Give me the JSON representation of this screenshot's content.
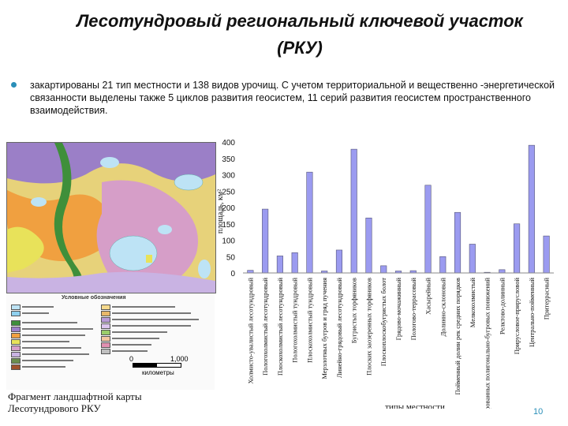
{
  "slide": {
    "title_line1": "Лесотундровый региональный ключевой участок",
    "title_line2": "(РКУ)",
    "bullet": "закартированы 21 тип местности и 138 видов урочищ. С учетом территориальной и вещественно -энергетической связанности выделены также 5 циклов развития геосистем, 11 серий развития геосистем пространственного взаимодействия.",
    "map_caption_line1": "Фрагмент ландшафтной карты",
    "map_caption_line2": "Лесотундрового РКУ",
    "legend_title": "Условные обозначения",
    "scale_left": "0",
    "scale_right": "1,000",
    "scale_unit": "километры",
    "page_number": "10"
  },
  "colors": {
    "bar_fill": "#9b9bf0",
    "bar_stroke": "#555577",
    "map_water": "#bde3f5",
    "map_purple": "#9b7fc7",
    "map_green": "#3f8f3a",
    "map_orange": "#f0a040",
    "map_yellow": "#e8e25a",
    "map_pink": "#d69ec8",
    "accent": "#2a8fb8"
  },
  "chart_data": {
    "type": "bar",
    "ylabel": "площадь, км²",
    "xlabel": "типы местности",
    "ylim": [
      0,
      400
    ],
    "yticks": [
      0,
      50,
      100,
      150,
      200,
      250,
      300,
      350,
      400
    ],
    "grid": false,
    "categories": [
      "Холмисто-увалистый лесотундровый",
      "Пологохолмистый лесотундровый",
      "Плоскохолмистый лесотундровый",
      "Пологохолмистый тундровый",
      "Плоскохолмистый тундровый",
      "Мерзлотных бугров и гряд пучения",
      "Линейно-грядовый лесотундровый",
      "Бугристых торфяников",
      "Плоских заозеренных торфяников",
      "Плоскоплоскобугристых болот",
      "Грядово-мочажинный",
      "Пологово-террасовый",
      "Хасырейный",
      "Долинно-склоновый",
      "Пойменный долин рек средних порядков",
      "Мелкохолмистый",
      "Заторфованных полигонально-бугровых понижений",
      "Релктово-долинный",
      "Прирусловое-прирусловой",
      "Центрально-пойменный",
      "Притеррасный"
    ],
    "values": [
      8,
      195,
      52,
      62,
      308,
      6,
      70,
      378,
      168,
      22,
      6,
      7,
      268,
      50,
      185,
      88,
      2,
      10,
      150,
      390,
      113
    ]
  }
}
